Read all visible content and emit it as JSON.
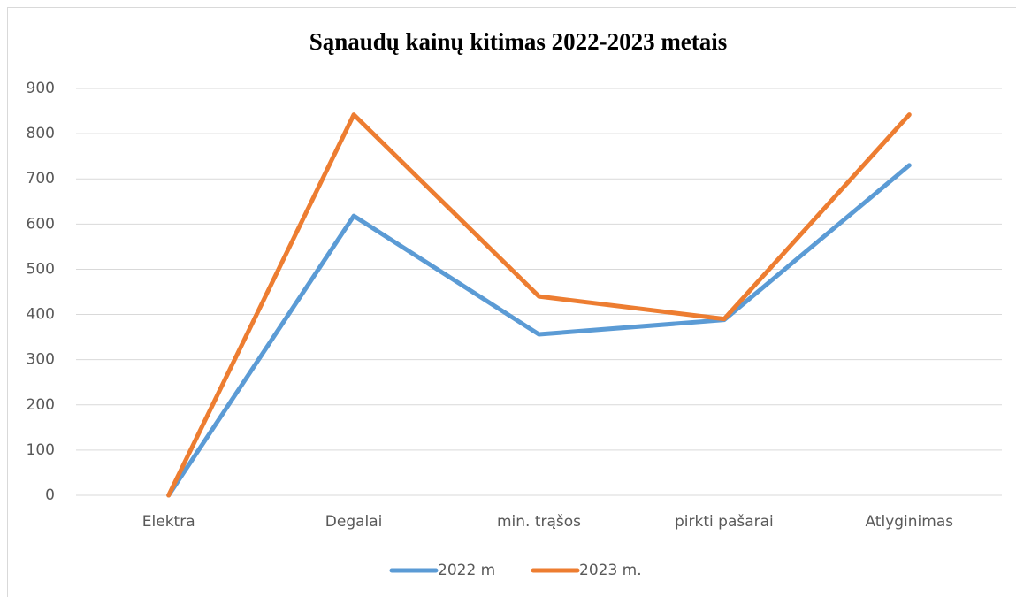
{
  "chart_data": {
    "type": "line",
    "title": "Sąnaudų kainų kitimas 2022-2023 metais",
    "categories": [
      "Elektra",
      "Degalai",
      "min. trąšos",
      "pirkti pašarai",
      "Atlyginimas"
    ],
    "series": [
      {
        "name": "2022 m",
        "color": "#5b9bd5",
        "values": [
          0,
          618,
          356,
          388,
          730
        ]
      },
      {
        "name": "2023 m.",
        "color": "#ed7d31",
        "values": [
          0,
          842,
          440,
          390,
          842
        ]
      }
    ],
    "ylim": [
      0,
      900
    ],
    "yticks": [
      0,
      100,
      200,
      300,
      400,
      500,
      600,
      700,
      800,
      900
    ],
    "grid": true,
    "legend": "bottom"
  }
}
